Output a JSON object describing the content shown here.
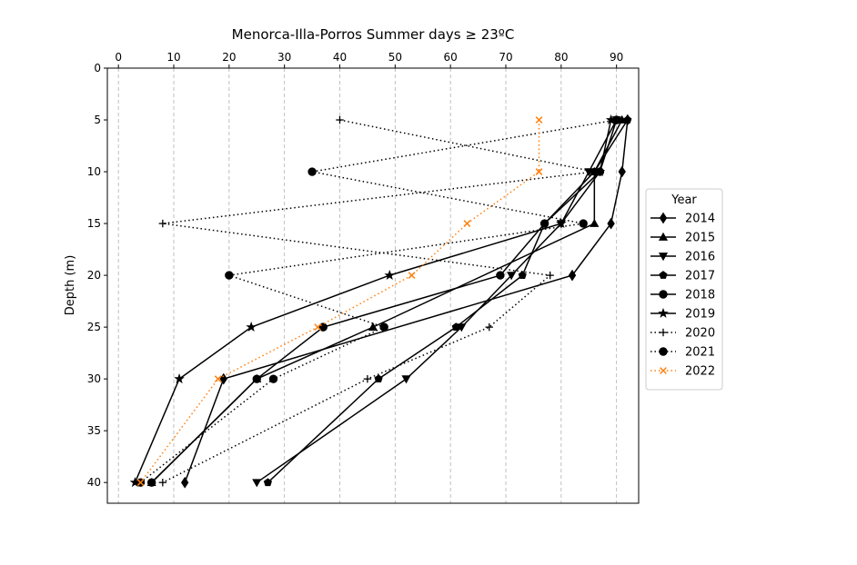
{
  "chart_data": {
    "type": "line",
    "title": "Menorca-Illa-Porros Summer days ≥ 23ºC",
    "xlabel": "",
    "ylabel": "Depth (m)",
    "x_axis_position": "top",
    "y_inverted": true,
    "xlim": [
      -2,
      94
    ],
    "ylim": [
      0,
      42
    ],
    "xticks": [
      0,
      10,
      20,
      30,
      40,
      50,
      60,
      70,
      80,
      90
    ],
    "yticks": [
      0,
      5,
      10,
      15,
      20,
      25,
      30,
      35,
      40
    ],
    "x_grid": "dashed",
    "legend": {
      "title": "Year",
      "placement": "right"
    },
    "series": [
      {
        "name": "2014",
        "marker": "diamond",
        "line": "solid",
        "color": "#000000",
        "x": [
          92,
          91,
          89,
          82,
          19,
          12
        ],
        "y": [
          5,
          10,
          15,
          20,
          30,
          40
        ]
      },
      {
        "name": "2015",
        "marker": "triangle-up",
        "line": "solid",
        "color": "#000000",
        "x": [
          91,
          86,
          86,
          46,
          25,
          6
        ],
        "y": [
          5,
          10,
          15,
          25,
          30,
          40
        ]
      },
      {
        "name": "2016",
        "marker": "triangle-down",
        "line": "solid",
        "color": "#000000",
        "x": [
          90,
          85,
          80,
          71,
          62,
          52,
          25
        ],
        "y": [
          5,
          10,
          15,
          20,
          25,
          30,
          40
        ]
      },
      {
        "name": "2017",
        "marker": "pentagon",
        "line": "solid",
        "color": "#000000",
        "x": [
          92,
          86,
          77,
          73,
          61,
          47,
          27
        ],
        "y": [
          5,
          10,
          15,
          20,
          25,
          30,
          40
        ]
      },
      {
        "name": "2018",
        "marker": "circle",
        "line": "solid",
        "color": "#000000",
        "x": [
          90,
          87,
          77,
          69,
          37,
          25,
          6
        ],
        "y": [
          5,
          10,
          15,
          20,
          25,
          30,
          40
        ]
      },
      {
        "name": "2019",
        "marker": "star",
        "line": "solid",
        "color": "#000000",
        "x": [
          89,
          87,
          80,
          49,
          24,
          11,
          3
        ],
        "y": [
          5,
          10,
          15,
          20,
          25,
          30,
          40
        ]
      },
      {
        "name": "2020",
        "marker": "plus",
        "line": "dotted",
        "color": "#000000",
        "x": [
          40,
          86,
          8,
          78,
          67,
          45,
          8
        ],
        "y": [
          5,
          10,
          15,
          20,
          25,
          30,
          40
        ]
      },
      {
        "name": "2021",
        "marker": "circle",
        "line": "dotted",
        "color": "#000000",
        "x": [
          90,
          35,
          84,
          20,
          48,
          28,
          4
        ],
        "y": [
          5,
          10,
          15,
          20,
          25,
          30,
          40
        ]
      },
      {
        "name": "2022",
        "marker": "x",
        "line": "dotted",
        "color": "#ff7f0e",
        "x": [
          76,
          76,
          63,
          53,
          36,
          18,
          4
        ],
        "y": [
          5,
          10,
          15,
          20,
          25,
          30,
          40
        ]
      }
    ]
  }
}
